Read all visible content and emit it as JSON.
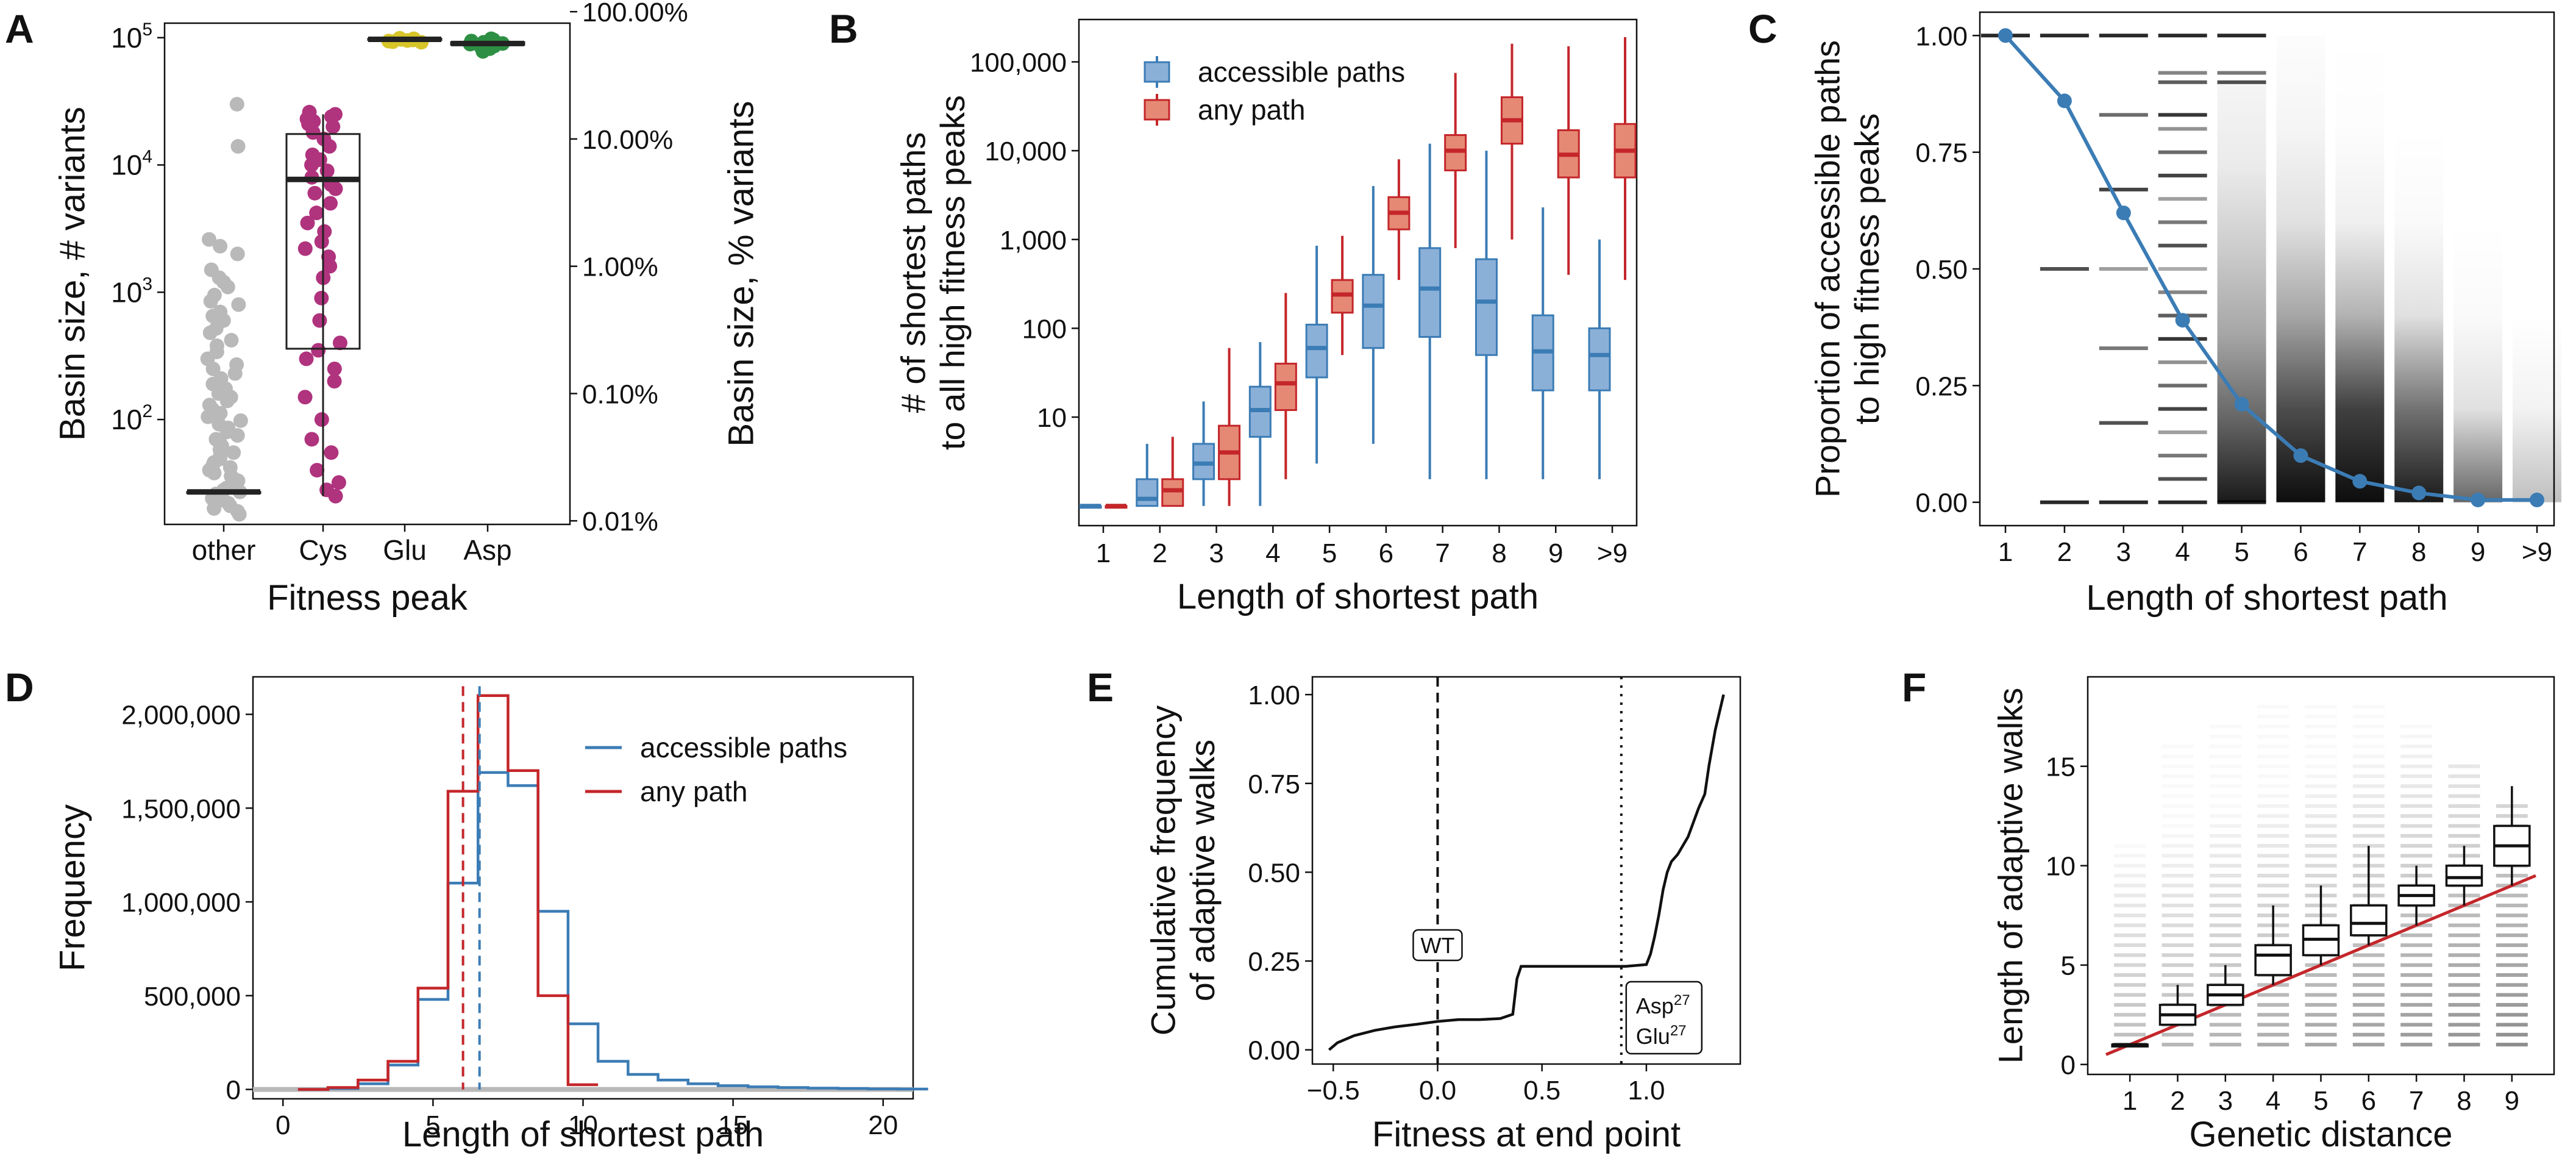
{
  "figure": {
    "panels": [
      "A",
      "B",
      "C",
      "D",
      "E",
      "F"
    ]
  },
  "colors": {
    "blue": "#3b7cb5",
    "blue_fill": "#8bb0d8",
    "red": "#c4262a",
    "red_fill": "#e58975",
    "gray": "#b9b9b9",
    "magenta": "#b0337e",
    "yellow": "#d7c52a",
    "green": "#2d8f43"
  },
  "chart_data": [
    {
      "panel": "A",
      "type": "box+strip",
      "xlabel": "Fitness peak",
      "ylabel_left": "Basin size, # variants",
      "ylabel_right": "Basin size, % variants",
      "y_scale": "log",
      "ylim": [
        15,
        130000
      ],
      "left_ticks": [
        {
          "base": "10",
          "exp": "2",
          "value": 100
        },
        {
          "base": "10",
          "exp": "3",
          "value": 1000
        },
        {
          "base": "10",
          "exp": "4",
          "value": 10000
        },
        {
          "base": "10",
          "exp": "5",
          "value": 100000
        }
      ],
      "right_ticks": [
        {
          "label": "0.01%",
          "value": 16
        },
        {
          "label": "0.10%",
          "value": 160
        },
        {
          "label": "1.00%",
          "value": 1600
        },
        {
          "label": "10.00%",
          "value": 16000
        },
        {
          "label": "100.00%",
          "value": 160000
        }
      ],
      "categories": [
        "other",
        "Cys",
        "Glu",
        "Asp"
      ],
      "boxes": [
        {
          "category": "other",
          "q1": 27,
          "median": 27,
          "q3": 27,
          "whislo": 27,
          "whishi": 27
        },
        {
          "category": "Cys",
          "q1": 360,
          "median": 7700,
          "q3": 17500,
          "whislo": 25,
          "whishi": 25000
        },
        {
          "category": "Glu",
          "q1": 96000,
          "median": 97000,
          "q3": 98000,
          "whislo": 96000,
          "whishi": 98000
        },
        {
          "category": "Asp",
          "q1": 88000,
          "median": 90000,
          "q3": 92000,
          "whislo": 88000,
          "whishi": 92000
        }
      ],
      "points": {
        "other": [
          30000,
          14000,
          2600,
          2300,
          2000,
          1500,
          1300,
          1200,
          1100,
          950,
          850,
          800,
          700,
          650,
          600,
          520,
          480,
          420,
          380,
          340,
          300,
          270,
          250,
          230,
          210,
          190,
          175,
          160,
          150,
          140,
          130,
          120,
          112,
          105,
          98,
          92,
          86,
          80,
          75,
          70,
          66,
          62,
          58,
          55,
          52,
          49,
          46,
          44,
          42,
          40,
          38,
          36,
          34,
          33,
          32,
          31,
          30,
          29,
          28,
          27,
          26,
          25,
          24,
          23,
          22,
          21,
          20,
          19,
          18
        ],
        "Cys": [
          26000,
          25000,
          24000,
          23000,
          22000,
          21000,
          20000,
          18000,
          16000,
          14000,
          12000,
          11000,
          10000,
          9000,
          8000,
          7000,
          6500,
          6000,
          5000,
          4200,
          3500,
          3000,
          2500,
          2200,
          1900,
          1600,
          1300,
          900,
          600,
          400,
          350,
          300,
          250,
          200,
          150,
          100,
          70,
          55,
          40,
          32,
          28,
          25
        ],
        "Glu": [
          99000,
          98000,
          97000,
          96000,
          95000,
          94000,
          93000,
          92000
        ],
        "Asp": [
          98000,
          96000,
          94000,
          92000,
          90000,
          89000,
          88000,
          86000,
          84000,
          82000,
          80000,
          78000
        ]
      }
    },
    {
      "panel": "B",
      "type": "box",
      "xlabel": "Length of shortest path",
      "ylabel": "# of shortest paths\nto all high fitness peaks",
      "y_scale": "log",
      "ylim": [
        0.6,
        300000
      ],
      "yticks": [
        {
          "label": "10",
          "value": 10
        },
        {
          "label": "100",
          "value": 100
        },
        {
          "label": "1,000",
          "value": 1000
        },
        {
          "label": "10,000",
          "value": 10000
        },
        {
          "label": "100,000",
          "value": 100000
        }
      ],
      "categories": [
        "1",
        "2",
        "3",
        "4",
        "5",
        "6",
        "7",
        "8",
        "9",
        ">9"
      ],
      "legend": [
        "accessible paths",
        "any path"
      ],
      "legend_position": "top-left",
      "series": [
        {
          "name": "accessible paths",
          "boxes": [
            {
              "q1": 1,
              "median": 1,
              "q3": 1,
              "whislo": 1,
              "whishi": 1
            },
            {
              "q1": 1,
              "median": 1.2,
              "q3": 2,
              "whislo": 1,
              "whishi": 5
            },
            {
              "q1": 2,
              "median": 3,
              "q3": 5,
              "whislo": 1,
              "whishi": 15
            },
            {
              "q1": 6,
              "median": 12,
              "q3": 22,
              "whislo": 1,
              "whishi": 70
            },
            {
              "q1": 28,
              "median": 60,
              "q3": 110,
              "whislo": 3,
              "whishi": 850
            },
            {
              "q1": 60,
              "median": 180,
              "q3": 400,
              "whislo": 5,
              "whishi": 4000
            },
            {
              "q1": 80,
              "median": 280,
              "q3": 800,
              "whislo": 2,
              "whishi": 12000
            },
            {
              "q1": 50,
              "median": 200,
              "q3": 600,
              "whislo": 2,
              "whishi": 10000
            },
            {
              "q1": 20,
              "median": 55,
              "q3": 140,
              "whislo": 2,
              "whishi": 2300
            },
            {
              "q1": 20,
              "median": 50,
              "q3": 100,
              "whislo": 2,
              "whishi": 1000
            }
          ]
        },
        {
          "name": "any path",
          "boxes": [
            {
              "q1": 1,
              "median": 1,
              "q3": 1,
              "whislo": 1,
              "whishi": 1
            },
            {
              "q1": 1,
              "median": 1.5,
              "q3": 2,
              "whislo": 1,
              "whishi": 6
            },
            {
              "q1": 2,
              "median": 4,
              "q3": 8,
              "whislo": 1,
              "whishi": 60
            },
            {
              "q1": 12,
              "median": 24,
              "q3": 40,
              "whislo": 2,
              "whishi": 250
            },
            {
              "q1": 150,
              "median": 240,
              "q3": 350,
              "whislo": 50,
              "whishi": 1100
            },
            {
              "q1": 1300,
              "median": 2000,
              "q3": 3000,
              "whislo": 350,
              "whishi": 8000
            },
            {
              "q1": 6000,
              "median": 10000,
              "q3": 15000,
              "whislo": 800,
              "whishi": 75000
            },
            {
              "q1": 12000,
              "median": 22000,
              "q3": 40000,
              "whislo": 1000,
              "whishi": 160000
            },
            {
              "q1": 5000,
              "median": 9000,
              "q3": 17000,
              "whislo": 400,
              "whishi": 150000
            },
            {
              "q1": 5000,
              "median": 10000,
              "q3": 20000,
              "whislo": 350,
              "whishi": 190000
            }
          ]
        }
      ]
    },
    {
      "panel": "C",
      "type": "line+density",
      "xlabel": "Length of shortest path",
      "ylabel": "Proportion of accessible paths\nto high fitness peaks",
      "ylim": [
        -0.05,
        1.05
      ],
      "yticks": [
        "0.00",
        "0.25",
        "0.50",
        "0.75",
        "1.00"
      ],
      "categories": [
        "1",
        "2",
        "3",
        "4",
        "5",
        "6",
        "7",
        "8",
        "9",
        ">9"
      ],
      "mean_line": [
        1.0,
        0.86,
        0.62,
        0.39,
        0.21,
        0.1,
        0.045,
        0.02,
        0.005,
        0.005
      ],
      "dash_levels": [
        [
          1.0
        ],
        [
          0,
          0.5,
          1.0
        ],
        [
          0,
          0.17,
          0.33,
          0.5,
          0.67,
          0.83,
          1.0
        ],
        [
          0,
          0.05,
          0.1,
          0.15,
          0.2,
          0.25,
          0.3,
          0.35,
          0.4,
          0.45,
          0.5,
          0.55,
          0.6,
          0.65,
          0.7,
          0.75,
          0.8,
          0.83,
          0.9,
          0.92,
          1.0
        ],
        [
          0,
          0.9,
          0.92,
          1.0
        ]
      ]
    },
    {
      "panel": "D",
      "type": "step-histogram",
      "xlabel": "Length of shortest path",
      "ylabel": "Frequency",
      "xlim": [
        -1,
        21
      ],
      "ylim": [
        -50000,
        2200000
      ],
      "xticks": [
        0,
        5,
        10,
        15,
        20
      ],
      "yticks": [
        {
          "label": "0",
          "value": 0
        },
        {
          "label": "500,000",
          "value": 500000
        },
        {
          "label": "1,000,000",
          "value": 1000000
        },
        {
          "label": "1,500,000",
          "value": 1500000
        },
        {
          "label": "2,000,000",
          "value": 2000000
        }
      ],
      "legend": [
        "accessible paths",
        "any path"
      ],
      "legend_position": "top-right",
      "series": [
        {
          "name": "accessible paths",
          "bins": [
            0,
            1,
            2,
            3,
            4,
            5,
            6,
            7,
            8,
            9,
            10,
            11,
            12,
            13,
            14,
            15,
            16,
            17,
            18,
            19,
            20,
            21
          ],
          "values": [
            0,
            5000,
            30000,
            130000,
            480000,
            1100000,
            1690000,
            1620000,
            950000,
            350000,
            150000,
            80000,
            50000,
            30000,
            20000,
            14000,
            10000,
            7000,
            5000,
            3000,
            2000
          ]
        },
        {
          "name": "any path",
          "bins": [
            0,
            1,
            2,
            3,
            4,
            5,
            6,
            7,
            8,
            9,
            10
          ],
          "values": [
            0,
            10000,
            50000,
            150000,
            540000,
            1590000,
            2100000,
            1700000,
            500000,
            25000
          ]
        }
      ],
      "vlines": [
        {
          "series": "any path",
          "x": 6.0
        },
        {
          "series": "accessible paths",
          "x": 6.55
        }
      ]
    },
    {
      "panel": "E",
      "type": "line",
      "xlabel": "Fitness at end point",
      "ylabel": "Cumulative frequency\nof adaptive walks",
      "xlim": [
        -0.6,
        1.45
      ],
      "ylim": [
        -0.04,
        1.05
      ],
      "xticks": [
        {
          "label": "−0.5",
          "value": -0.5
        },
        {
          "label": "0.0",
          "value": 0.0
        },
        {
          "label": "0.5",
          "value": 0.5
        },
        {
          "label": "1.0",
          "value": 1.0
        }
      ],
      "yticks": [
        "0.00",
        "0.25",
        "0.50",
        "0.75",
        "1.00"
      ],
      "curve": {
        "x": [
          -0.52,
          -0.48,
          -0.4,
          -0.3,
          -0.2,
          -0.1,
          0.0,
          0.1,
          0.2,
          0.3,
          0.36,
          0.38,
          0.4,
          0.5,
          0.6,
          0.7,
          0.8,
          0.9,
          1.0,
          1.02,
          1.04,
          1.06,
          1.08,
          1.1,
          1.12,
          1.15,
          1.2,
          1.25,
          1.28,
          1.3,
          1.33,
          1.35,
          1.37
        ],
        "y": [
          0.0,
          0.02,
          0.04,
          0.055,
          0.065,
          0.072,
          0.08,
          0.085,
          0.085,
          0.088,
          0.1,
          0.2,
          0.235,
          0.235,
          0.235,
          0.235,
          0.235,
          0.235,
          0.24,
          0.27,
          0.32,
          0.38,
          0.45,
          0.5,
          0.53,
          0.55,
          0.6,
          0.68,
          0.72,
          0.8,
          0.9,
          0.95,
          1.0
        ]
      },
      "vlines": [
        {
          "x": 0.0,
          "label": "WT",
          "style": "dashed"
        },
        {
          "x": 0.88,
          "label_lines": [
            {
              "text": "Asp",
              "sup": "27"
            },
            {
              "text": "Glu",
              "sup": "27"
            }
          ],
          "style": "dotted"
        }
      ]
    },
    {
      "panel": "F",
      "type": "box+strip",
      "xlabel": "Genetic distance",
      "ylabel": "Length of adaptive walks",
      "ylim": [
        -0.5,
        19.5
      ],
      "yticks": [
        0,
        5,
        10,
        15
      ],
      "categories": [
        "1",
        "2",
        "3",
        "4",
        "5",
        "6",
        "7",
        "8",
        "9"
      ],
      "boxes": [
        {
          "q1": 1,
          "median": 1,
          "q3": 1,
          "whislo": 1,
          "whishi": 1
        },
        {
          "q1": 2,
          "median": 2.5,
          "q3": 3,
          "whislo": 2,
          "whishi": 4
        },
        {
          "q1": 3,
          "median": 3.5,
          "q3": 4,
          "whislo": 3,
          "whishi": 5
        },
        {
          "q1": 4.5,
          "median": 5.5,
          "q3": 6,
          "whislo": 4,
          "whishi": 8
        },
        {
          "q1": 5.5,
          "median": 6.3,
          "q3": 7,
          "whislo": 5,
          "whishi": 9
        },
        {
          "q1": 6.5,
          "median": 7.1,
          "q3": 8,
          "whislo": 6,
          "whishi": 11
        },
        {
          "q1": 8,
          "median": 8.5,
          "q3": 9,
          "whislo": 7,
          "whishi": 10
        },
        {
          "q1": 9,
          "median": 9.4,
          "q3": 10,
          "whislo": 8,
          "whishi": 11
        },
        {
          "q1": 10,
          "median": 11,
          "q3": 12,
          "whislo": 9,
          "whishi": 14
        }
      ],
      "strip_max": [
        11,
        16,
        17,
        18,
        18,
        18,
        17,
        15,
        13
      ],
      "reference_line": {
        "x": [
          0.5,
          9.5
        ],
        "y": [
          0.5,
          9.5
        ]
      }
    }
  ]
}
